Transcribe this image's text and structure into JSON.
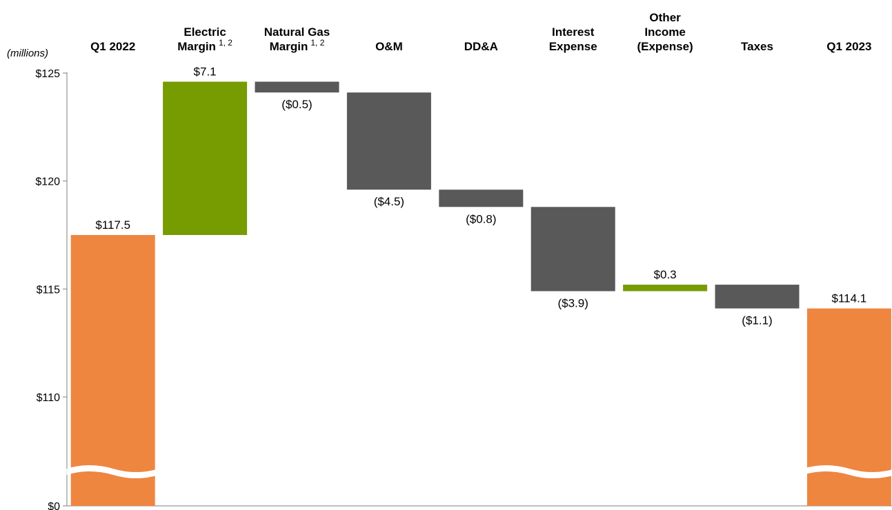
{
  "chart_data": {
    "type": "bar",
    "subtype": "waterfall",
    "unit_label": "(millions)",
    "categories": [
      {
        "lines": [
          "Q1 2022"
        ],
        "sup": ""
      },
      {
        "lines": [
          "Electric",
          "Margin"
        ],
        "sup": "1, 2"
      },
      {
        "lines": [
          "Natural Gas",
          "Margin"
        ],
        "sup": "1, 2"
      },
      {
        "lines": [
          "O&M"
        ],
        "sup": ""
      },
      {
        "lines": [
          "DD&A"
        ],
        "sup": ""
      },
      {
        "lines": [
          "Interest",
          "Expense"
        ],
        "sup": ""
      },
      {
        "lines": [
          "Other",
          "Income",
          "(Expense)"
        ],
        "sup": ""
      },
      {
        "lines": [
          "Taxes"
        ],
        "sup": ""
      },
      {
        "lines": [
          "Q1 2023"
        ],
        "sup": ""
      }
    ],
    "bars": [
      {
        "kind": "total",
        "value": 117.5,
        "label": "$117.5",
        "color": "#EE8640"
      },
      {
        "kind": "delta",
        "value": 7.1,
        "label": "$7.1",
        "color": "#779C02"
      },
      {
        "kind": "delta",
        "value": -0.5,
        "label": "($0.5)",
        "color": "#595959"
      },
      {
        "kind": "delta",
        "value": -4.5,
        "label": "($4.5)",
        "color": "#595959"
      },
      {
        "kind": "delta",
        "value": -0.8,
        "label": "($0.8)",
        "color": "#595959"
      },
      {
        "kind": "delta",
        "value": -3.9,
        "label": "($3.9)",
        "color": "#595959"
      },
      {
        "kind": "delta",
        "value": 0.3,
        "label": "$0.3",
        "color": "#779C02"
      },
      {
        "kind": "delta",
        "value": -1.1,
        "label": "($1.1)",
        "color": "#595959"
      },
      {
        "kind": "total",
        "value": 114.1,
        "label": "$114.1",
        "color": "#EE8640"
      }
    ],
    "y_ticks": [
      {
        "value": 125,
        "label": "$125"
      },
      {
        "value": 120,
        "label": "$120"
      },
      {
        "value": 115,
        "label": "$115"
      },
      {
        "value": 110,
        "label": "$110"
      },
      {
        "value": 0,
        "label": "$0"
      }
    ],
    "ylim": [
      0,
      125
    ],
    "axis_break": true,
    "colors": {
      "total": "#EE8640",
      "increase": "#779C02",
      "decrease": "#595959"
    }
  }
}
